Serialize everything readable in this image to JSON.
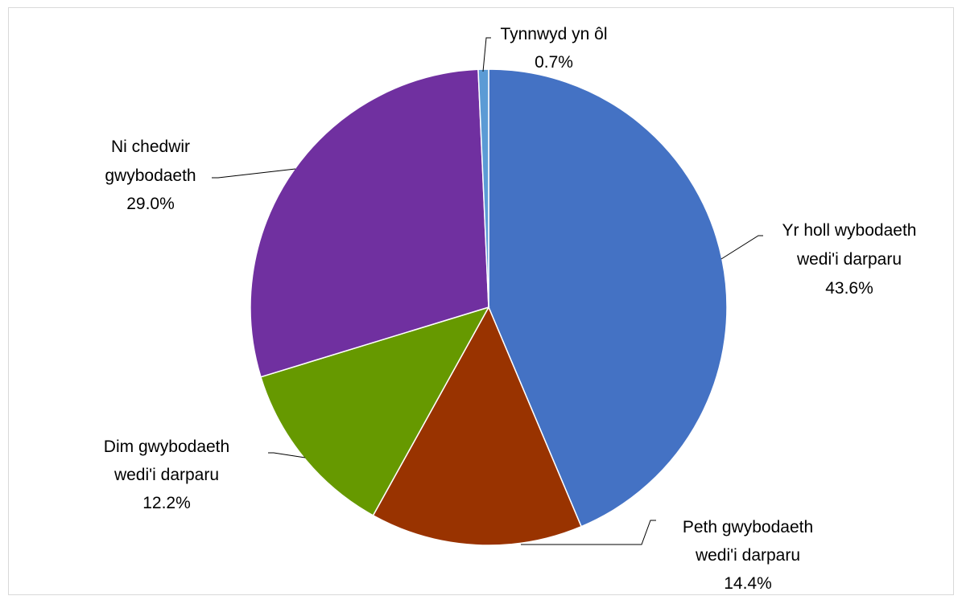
{
  "chart_data": {
    "type": "pie",
    "title": "",
    "slices": [
      {
        "label_lines": [
          "Yr holl wybodaeth",
          "wedi'i darparu"
        ],
        "percent_label": "43.6%",
        "value": 43.6,
        "color": "#4472C4"
      },
      {
        "label_lines": [
          "Peth gwybodaeth",
          "wedi'i darparu"
        ],
        "percent_label": "14.4%",
        "value": 14.4,
        "color": "#993300"
      },
      {
        "label_lines": [
          "Dim gwybodaeth",
          "wedi'i darparu"
        ],
        "percent_label": "12.2%",
        "value": 12.2,
        "color": "#669900"
      },
      {
        "label_lines": [
          "Ni chedwir",
          "gwybodaeth"
        ],
        "percent_label": "29.0%",
        "value": 29.0,
        "color": "#7030A0"
      },
      {
        "label_lines": [
          "Tynnwyd yn ôl"
        ],
        "percent_label": "0.7%",
        "value": 0.7,
        "color": "#5B9BD5"
      }
    ],
    "legend": "none",
    "start_angle": "12 o'clock",
    "direction": "clockwise"
  }
}
